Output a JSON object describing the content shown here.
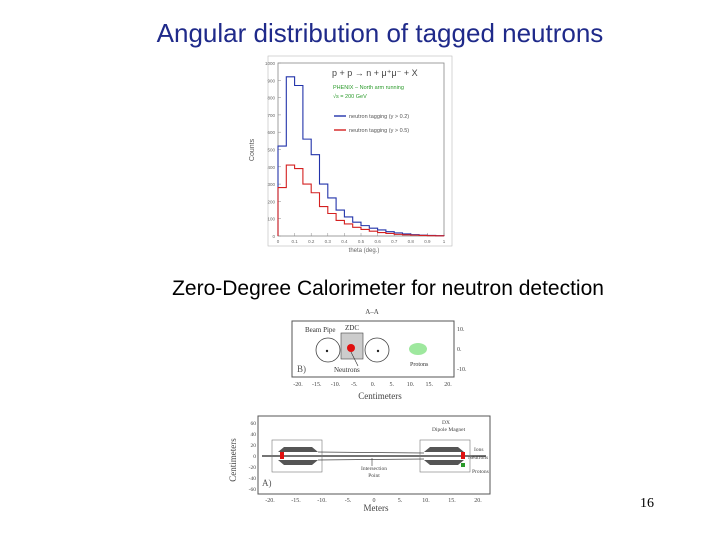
{
  "slide": {
    "title": "Angular distribution of tagged neutrons",
    "section_title": "Zero-Degree Calorimeter for neutron detection",
    "page_number": "16"
  },
  "histogram": {
    "ylabel": "Counts",
    "xlabel": "theta (deg.)",
    "reaction": "p + p → n + μ⁺μ⁻ + X",
    "info_line1": "PHENIX – North arm running",
    "info_line2": "√s = 200 GeV",
    "legend": [
      {
        "label": "neutron tagging (y > 0.2)",
        "color": "#2233aa"
      },
      {
        "label": "neutron tagging (y > 0.5)",
        "color": "#d42020"
      }
    ],
    "y_ticks": [
      "1000",
      "900",
      "800",
      "700",
      "600",
      "500",
      "400",
      "300",
      "200",
      "100",
      "0"
    ],
    "x_ticks": [
      "0",
      "0.1",
      "0.2",
      "0.3",
      "0.4",
      "0.5",
      "0.6",
      "0.7",
      "0.8",
      "0.9",
      "1"
    ]
  },
  "chart_data": {
    "type": "bar",
    "xlabel": "theta (deg.)",
    "ylabel": "Counts",
    "xlim": [
      0,
      1
    ],
    "ylim": [
      0,
      1000
    ],
    "bin_edges": [
      0,
      0.05,
      0.1,
      0.15,
      0.2,
      0.25,
      0.3,
      0.35,
      0.4,
      0.45,
      0.5,
      0.55,
      0.6,
      0.65,
      0.7,
      0.75,
      0.8,
      0.85,
      0.9,
      0.95,
      1.0
    ],
    "series": [
      {
        "name": "neutron tagging (y > 0.2)",
        "color": "#2233aa",
        "values": [
          520,
          920,
          870,
          560,
          470,
          300,
          220,
          150,
          110,
          80,
          60,
          45,
          35,
          25,
          18,
          12,
          8,
          5,
          3,
          2
        ]
      },
      {
        "name": "neutron tagging (y > 0.5)",
        "color": "#d42020",
        "values": [
          280,
          410,
          390,
          300,
          250,
          170,
          130,
          90,
          70,
          50,
          38,
          28,
          20,
          15,
          10,
          7,
          5,
          3,
          2,
          1
        ]
      }
    ]
  },
  "zdc_b": {
    "top_label": "A–A",
    "beam_pipe": "Beam Pipe",
    "zdc": "ZDC",
    "neutrons": "Neutrons",
    "protons": "Protons",
    "panel": "B)",
    "xlabel": "Centimeters",
    "x_ticks": [
      "-20.",
      "-15.",
      "-10.",
      "-5.",
      "0.",
      "5.",
      "10.",
      "15.",
      "20."
    ],
    "y_ticks": [
      "10.",
      "0.",
      "-10."
    ]
  },
  "zdc_a": {
    "dx_magnet": "DX",
    "dipole_magnet": "Dipole Magnet",
    "ions": "Ions",
    "neutrons": "Neutrons",
    "protons": "Protons",
    "intersection1": "Intersection",
    "intersection2": "Point",
    "panel": "A)",
    "ylabel": "Centimeters",
    "xlabel": "Meters",
    "x_ticks": [
      "-20.",
      "-15.",
      "-10.",
      "-5.",
      "0",
      "5.",
      "10.",
      "15.",
      "20."
    ],
    "y_ticks": [
      "60",
      "40",
      "20",
      "0",
      "-20",
      "-40",
      "-60"
    ]
  }
}
